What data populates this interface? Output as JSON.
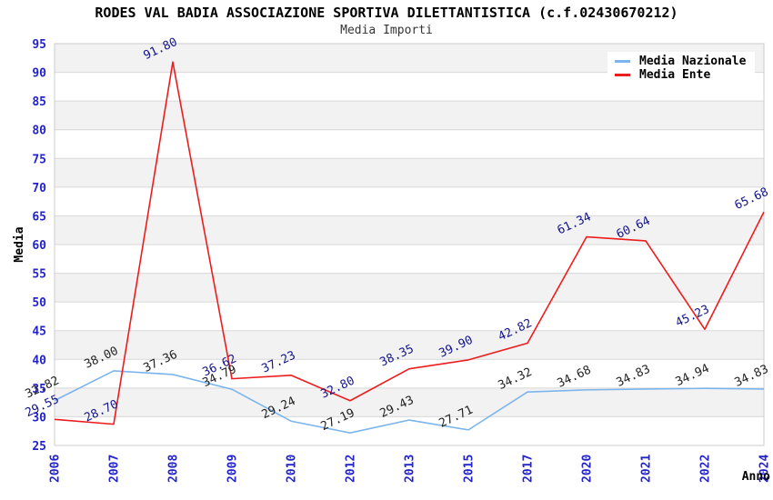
{
  "header": {
    "title": "RODES VAL BADIA ASSOCIAZIONE SPORTIVA DILETTANTISTICA (c.f.02430670212)",
    "subtitle": "Media Importi"
  },
  "chart_data": {
    "type": "line",
    "title": "RODES VAL BADIA ASSOCIAZIONE SPORTIVA DILETTANTISTICA (c.f.02430670212)",
    "subtitle": "Media Importi",
    "xlabel": "Anno",
    "ylabel": "Media",
    "ylim": [
      25,
      95
    ],
    "ytick_step": 5,
    "grid": true,
    "plot_bands": "alternating horizontal stripes every 5 units",
    "legend_position": "top-right",
    "label_decimals": 2,
    "categories": [
      "2006",
      "2007",
      "2008",
      "2009",
      "2010",
      "2012",
      "2013",
      "2015",
      "2017",
      "2020",
      "2021",
      "2022",
      "2024"
    ],
    "series": [
      {
        "name": "Media Nazionale",
        "color": "#7cb5ec",
        "label_color": "#222222",
        "values": [
          32.82,
          38.0,
          37.36,
          34.79,
          29.24,
          27.19,
          29.43,
          27.71,
          34.32,
          34.68,
          34.83,
          34.94,
          34.83
        ]
      },
      {
        "name": "Media Ente",
        "color": "#ee1c1c",
        "label_color": "#14148c",
        "values": [
          29.55,
          28.7,
          91.8,
          36.62,
          37.23,
          32.8,
          38.35,
          39.9,
          42.82,
          61.34,
          60.64,
          45.23,
          65.68
        ]
      }
    ]
  },
  "colors": {
    "axis_tick_label": "#2323cc",
    "axis_title": "#000000",
    "band": "#f2f2f2",
    "gridline": "#d8d8d8",
    "plot_border": "#cccccc",
    "background": "#ffffff"
  }
}
